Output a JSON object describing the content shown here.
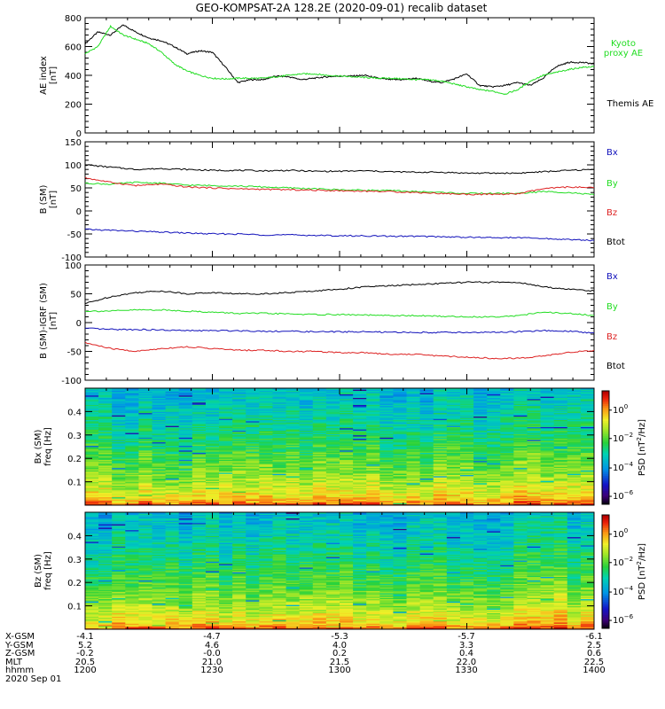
{
  "title": "GEO-KOMPSAT-2A 128.2E (2020-09-01) recalib dataset",
  "colors": {
    "black": "#000000",
    "green": "#22dd22",
    "red": "#dd2222",
    "blue": "#1111bb"
  },
  "chart_data": [
    {
      "type": "line",
      "ylabel": "AE index [nT]",
      "ylim": [
        0,
        800
      ],
      "yticks": [
        0,
        200,
        400,
        600,
        800
      ],
      "xlim_hours": [
        12.0,
        14.0
      ],
      "series": [
        {
          "name": "Themis AE",
          "color": "#000000",
          "x": [
            12.0,
            12.05,
            12.1,
            12.15,
            12.2,
            12.25,
            12.3,
            12.35,
            12.4,
            12.45,
            12.5,
            12.55,
            12.6,
            12.65,
            12.7,
            12.75,
            12.8,
            12.85,
            12.9,
            12.95,
            13.0,
            13.05,
            13.1,
            13.15,
            13.2,
            13.25,
            13.3,
            13.35,
            13.4,
            13.45,
            13.5,
            13.55,
            13.6,
            13.65,
            13.7,
            13.75,
            13.8,
            13.85,
            13.9,
            13.95,
            14.0
          ],
          "y": [
            620,
            700,
            680,
            750,
            700,
            660,
            640,
            600,
            550,
            570,
            560,
            460,
            350,
            370,
            370,
            395,
            390,
            370,
            380,
            390,
            395,
            395,
            400,
            380,
            370,
            370,
            380,
            360,
            350,
            375,
            410,
            330,
            320,
            330,
            350,
            330,
            380,
            460,
            490,
            490,
            480
          ]
        },
        {
          "name": "Kyoto proxy AE",
          "color": "#22dd22",
          "x": [
            12.0,
            12.05,
            12.1,
            12.15,
            12.2,
            12.25,
            12.3,
            12.35,
            12.4,
            12.45,
            12.5,
            12.55,
            12.6,
            12.65,
            12.7,
            12.75,
            12.8,
            12.85,
            12.9,
            12.95,
            13.0,
            13.05,
            13.1,
            13.15,
            13.2,
            13.25,
            13.3,
            13.35,
            13.4,
            13.45,
            13.5,
            13.55,
            13.6,
            13.65,
            13.7,
            13.75,
            13.8,
            13.85,
            13.9,
            13.95,
            14.0
          ],
          "y": [
            550,
            600,
            740,
            680,
            650,
            620,
            560,
            480,
            430,
            400,
            380,
            375,
            380,
            380,
            380,
            390,
            400,
            410,
            410,
            400,
            395,
            390,
            385,
            380,
            380,
            375,
            370,
            370,
            360,
            340,
            320,
            300,
            290,
            270,
            300,
            360,
            400,
            420,
            440,
            455,
            460
          ]
        }
      ]
    },
    {
      "type": "line",
      "ylabel": "B (SM) [nT]",
      "ylim": [
        -100,
        150
      ],
      "yticks": [
        -100,
        -50,
        0,
        50,
        100,
        150
      ],
      "xlim_hours": [
        12.0,
        14.0
      ],
      "series": [
        {
          "name": "Bx",
          "color": "#000000",
          "x": [
            12.0,
            12.1,
            12.2,
            12.3,
            12.4,
            12.5,
            12.6,
            12.7,
            12.8,
            12.9,
            13.0,
            13.1,
            13.2,
            13.3,
            13.4,
            13.5,
            13.6,
            13.7,
            13.8,
            13.9,
            14.0
          ],
          "y": [
            100,
            95,
            90,
            92,
            90,
            88,
            88,
            87,
            88,
            86,
            86,
            87,
            85,
            84,
            84,
            82,
            82,
            82,
            85,
            88,
            90
          ]
        },
        {
          "name": "By",
          "color": "#22dd22",
          "x": [
            12.0,
            12.1,
            12.2,
            12.3,
            12.4,
            12.5,
            12.6,
            12.7,
            12.8,
            12.9,
            13.0,
            13.1,
            13.2,
            13.3,
            13.4,
            13.5,
            13.6,
            13.7,
            13.8,
            13.9,
            14.0
          ],
          "y": [
            60,
            58,
            62,
            60,
            56,
            55,
            54,
            52,
            50,
            48,
            46,
            45,
            44,
            42,
            40,
            38,
            38,
            38,
            42,
            40,
            35
          ]
        },
        {
          "name": "Bz",
          "color": "#dd2222",
          "x": [
            12.0,
            12.1,
            12.2,
            12.3,
            12.4,
            12.5,
            12.6,
            12.7,
            12.8,
            12.9,
            13.0,
            13.1,
            13.2,
            13.3,
            13.4,
            13.5,
            13.6,
            13.7,
            13.8,
            13.9,
            14.0
          ],
          "y": [
            72,
            62,
            55,
            58,
            52,
            50,
            48,
            47,
            46,
            45,
            44,
            43,
            42,
            40,
            38,
            36,
            36,
            37,
            48,
            52,
            50
          ]
        },
        {
          "name": "Btot",
          "color": "#1111bb",
          "x": [
            12.0,
            12.1,
            12.2,
            12.3,
            12.4,
            12.5,
            12.6,
            12.7,
            12.8,
            12.9,
            13.0,
            13.1,
            13.2,
            13.3,
            13.4,
            13.5,
            13.6,
            13.7,
            13.8,
            13.9,
            14.0
          ],
          "y": [
            -40,
            -42,
            -44,
            -46,
            -48,
            -50,
            -50,
            -52,
            -52,
            -53,
            -54,
            -54,
            -55,
            -55,
            -56,
            -57,
            -58,
            -58,
            -60,
            -62,
            -64
          ]
        }
      ]
    },
    {
      "type": "line",
      "ylabel": "B (SM)-IGRF (SM) [nT]",
      "ylim": [
        -100,
        100
      ],
      "yticks": [
        -100,
        -50,
        0,
        50,
        100
      ],
      "xlim_hours": [
        12.0,
        14.0
      ],
      "series": [
        {
          "name": "Bx",
          "color": "#000000",
          "x": [
            12.0,
            12.1,
            12.2,
            12.3,
            12.4,
            12.5,
            12.6,
            12.7,
            12.8,
            12.9,
            13.0,
            13.1,
            13.2,
            13.3,
            13.4,
            13.5,
            13.6,
            13.7,
            13.8,
            13.9,
            14.0
          ],
          "y": [
            33,
            45,
            52,
            55,
            50,
            52,
            50,
            50,
            52,
            55,
            58,
            62,
            64,
            66,
            68,
            70,
            70,
            70,
            62,
            58,
            55
          ]
        },
        {
          "name": "By",
          "color": "#22dd22",
          "x": [
            12.0,
            12.1,
            12.2,
            12.3,
            12.4,
            12.5,
            12.6,
            12.7,
            12.8,
            12.9,
            13.0,
            13.1,
            13.2,
            13.3,
            13.4,
            13.5,
            13.6,
            13.7,
            13.8,
            13.9,
            14.0
          ],
          "y": [
            20,
            20,
            22,
            22,
            20,
            18,
            16,
            16,
            15,
            14,
            14,
            13,
            12,
            12,
            11,
            10,
            10,
            12,
            18,
            16,
            12
          ]
        },
        {
          "name": "Bz",
          "color": "#dd2222",
          "x": [
            12.0,
            12.1,
            12.2,
            12.3,
            12.4,
            12.5,
            12.6,
            12.7,
            12.8,
            12.9,
            13.0,
            13.1,
            13.2,
            13.3,
            13.4,
            13.5,
            13.6,
            13.7,
            13.8,
            13.9,
            14.0
          ],
          "y": [
            -35,
            -45,
            -50,
            -45,
            -42,
            -45,
            -48,
            -48,
            -50,
            -50,
            -52,
            -52,
            -55,
            -55,
            -58,
            -60,
            -62,
            -62,
            -58,
            -52,
            -48
          ]
        },
        {
          "name": "Btot",
          "color": "#1111bb",
          "x": [
            12.0,
            12.1,
            12.2,
            12.3,
            12.4,
            12.5,
            12.6,
            12.7,
            12.8,
            12.9,
            13.0,
            13.1,
            13.2,
            13.3,
            13.4,
            13.5,
            13.6,
            13.7,
            13.8,
            13.9,
            14.0
          ],
          "y": [
            -10,
            -12,
            -12,
            -13,
            -14,
            -14,
            -14,
            -15,
            -15,
            -16,
            -16,
            -16,
            -17,
            -17,
            -17,
            -17,
            -17,
            -16,
            -14,
            -15,
            -18
          ]
        }
      ]
    },
    {
      "type": "heatmap",
      "ylabel": "Bx (SM) freq [Hz]",
      "ylim": [
        0.0,
        0.5
      ],
      "yticks": [
        0.1,
        0.2,
        0.3,
        0.4
      ],
      "colorbar": {
        "label": "PSD [nT^2/Hz]",
        "ticks": [
          "10^0",
          "10^-2",
          "10^-4",
          "10^-6"
        ]
      }
    },
    {
      "type": "heatmap",
      "ylabel": "Bz (SM) freq [Hz]",
      "ylim": [
        0.0,
        0.5
      ],
      "yticks": [
        0.1,
        0.2,
        0.3,
        0.4
      ],
      "colorbar": {
        "label": "PSD [nT^2/Hz]",
        "ticks": [
          "10^0",
          "10^-2",
          "10^-4",
          "10^-6"
        ]
      }
    }
  ],
  "legend_top": [
    "Kyoto",
    "proxy AE",
    "Themis AE"
  ],
  "legend_b": [
    "Bx",
    "By",
    "Bz",
    "Btot"
  ],
  "ephemeris": {
    "rows": [
      {
        "label": "X-GSM",
        "values": [
          "-4.1",
          "-4.7",
          "-5.3",
          "-5.7",
          "-6.1"
        ]
      },
      {
        "label": "Y-GSM",
        "values": [
          "5.2",
          "4.6",
          "4.0",
          "3.3",
          "2.5"
        ]
      },
      {
        "label": "Z-GSM",
        "values": [
          "-0.2",
          "-0.0",
          "0.2",
          "0.4",
          "0.6"
        ]
      },
      {
        "label": "MLT",
        "values": [
          "20.5",
          "21.0",
          "21.5",
          "22.0",
          "22.5"
        ]
      },
      {
        "label": "hhmm",
        "values": [
          "1200",
          "1230",
          "1300",
          "1330",
          "1400"
        ]
      }
    ],
    "date": "2020 Sep 01"
  }
}
